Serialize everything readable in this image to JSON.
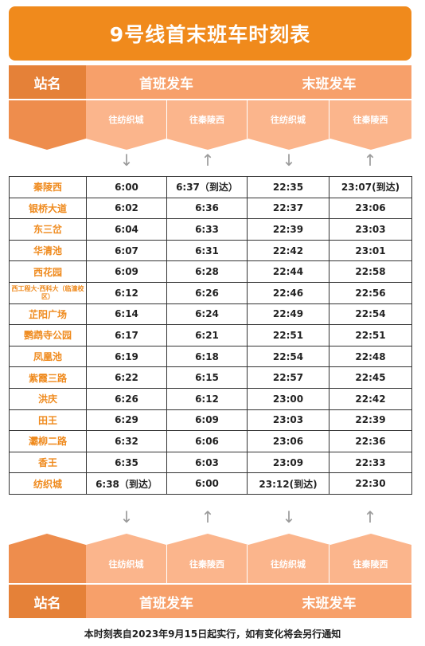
{
  "title": "9号线首末班车时刻表",
  "header": {
    "station_label": "站名",
    "first_train": "首班发车",
    "last_train": "末班发车",
    "dir_to_fangzhicheng": "往纺织城",
    "dir_to_qinlingxi": "往秦陵西",
    "arrow_down": "↓",
    "arrow_up": "↑"
  },
  "rows": [
    {
      "station": "秦陵西",
      "f1": "6:00",
      "f2": "6:37（到达）",
      "l1": "22:35",
      "l2": "23:07(到达)"
    },
    {
      "station": "银桥大道",
      "f1": "6:02",
      "f2": "6:36",
      "l1": "22:37",
      "l2": "23:06"
    },
    {
      "station": "东三岔",
      "f1": "6:04",
      "f2": "6:33",
      "l1": "22:39",
      "l2": "23:03"
    },
    {
      "station": "华清池",
      "f1": "6:07",
      "f2": "6:31",
      "l1": "22:42",
      "l2": "23:01"
    },
    {
      "station": "西花园",
      "f1": "6:09",
      "f2": "6:28",
      "l1": "22:44",
      "l2": "22:58"
    },
    {
      "station": "西工程大·西科大（临潼校区）",
      "f1": "6:12",
      "f2": "6:26",
      "l1": "22:46",
      "l2": "22:56"
    },
    {
      "station": "芷阳广场",
      "f1": "6:14",
      "f2": "6:24",
      "l1": "22:49",
      "l2": "22:54"
    },
    {
      "station": "鹦鹉寺公园",
      "f1": "6:17",
      "f2": "6:21",
      "l1": "22:51",
      "l2": "22:51"
    },
    {
      "station": "凤凰池",
      "f1": "6:19",
      "f2": "6:18",
      "l1": "22:54",
      "l2": "22:48"
    },
    {
      "station": "紫霞三路",
      "f1": "6:22",
      "f2": "6:15",
      "l1": "22:57",
      "l2": "22:45"
    },
    {
      "station": "洪庆",
      "f1": "6:26",
      "f2": "6:12",
      "l1": "23:00",
      "l2": "22:42"
    },
    {
      "station": "田王",
      "f1": "6:29",
      "f2": "6:09",
      "l1": "23:03",
      "l2": "22:39"
    },
    {
      "station": "灞柳二路",
      "f1": "6:32",
      "f2": "6:06",
      "l1": "23:06",
      "l2": "22:36"
    },
    {
      "station": "香王",
      "f1": "6:35",
      "f2": "6:03",
      "l1": "23:09",
      "l2": "22:33"
    },
    {
      "station": "纺织城",
      "f1": "6:38（到达）",
      "f2": "6:00",
      "l1": "23:12(到达)",
      "l2": "22:30"
    }
  ],
  "footer": "本时刻表自2023年9月15日起实行，如有变化将会另行通知",
  "colors": {
    "banner": "#f08a1c",
    "header_dark": "#e58138",
    "header_light": "#fbb58c",
    "station_text": "#ef8a1d"
  }
}
